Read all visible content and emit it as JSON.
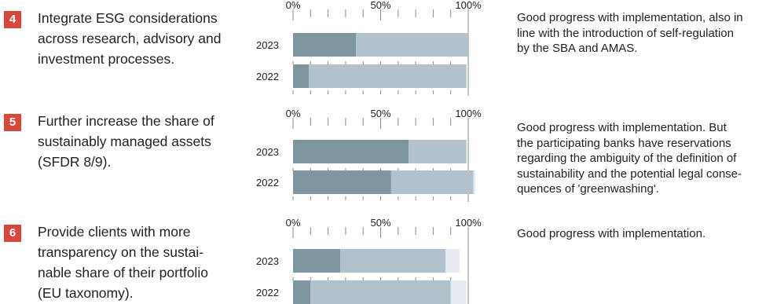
{
  "colors": {
    "accent": "#d5483c",
    "dark": "#7f96a1",
    "light": "#b1c2cd",
    "pale": "#e5ebf0",
    "axis": "#8a8a8a"
  },
  "axis_ticks": [
    "0%",
    "50%",
    "100%"
  ],
  "goals": [
    {
      "number": "4",
      "title_lines": [
        "Integrate ESG considerations",
        "across research, advisory and",
        "investment processes."
      ],
      "comment_lines": [
        "Good progress with implementation, also in",
        "line with the introduction of self-regulation",
        "by the SBA and AMAS."
      ]
    },
    {
      "number": "5",
      "title_lines": [
        "Further increase the share of",
        "sustainably managed assets",
        "(SFDR 8/9)."
      ],
      "comment_lines": [
        "Good progress with implementation. But",
        "the participating banks have reservations",
        "regarding the ambiguity of the definition of",
        "sustainability and the potential legal conse-",
        "quences of 'greenwashing'."
      ]
    },
    {
      "number": "6",
      "title_lines": [
        "Provide clients with more",
        "transparency on the sustai-",
        "nable share of their portfolio",
        "(EU taxonomy)."
      ],
      "comment_lines": [
        "Good progress with implementation."
      ]
    }
  ],
  "chart_data": [
    {
      "type": "bar",
      "orientation": "horizontal",
      "stacked": true,
      "categories": [
        "2023",
        "2022"
      ],
      "xlim": [
        0,
        100
      ],
      "xticks": [
        "0%",
        "50%",
        "100%"
      ],
      "series": [
        {
          "values": [
            36,
            9
          ]
        },
        {
          "values": [
            64,
            90
          ]
        }
      ]
    },
    {
      "type": "bar",
      "orientation": "horizontal",
      "stacked": true,
      "categories": [
        "2023",
        "2022"
      ],
      "xlim": [
        0,
        100
      ],
      "xticks": [
        "0%",
        "50%",
        "100%"
      ],
      "series": [
        {
          "values": [
            66,
            56
          ]
        },
        {
          "values": [
            33,
            47
          ]
        },
        {
          "values": [
            0,
            1
          ]
        }
      ]
    },
    {
      "type": "bar",
      "orientation": "horizontal",
      "stacked": true,
      "categories": [
        "2023",
        "2022"
      ],
      "xlim": [
        0,
        100
      ],
      "xticks": [
        "0%",
        "50%",
        "100%"
      ],
      "series": [
        {
          "values": [
            27,
            10
          ]
        },
        {
          "values": [
            60,
            80
          ]
        },
        {
          "values": [
            8,
            9
          ]
        }
      ]
    }
  ]
}
